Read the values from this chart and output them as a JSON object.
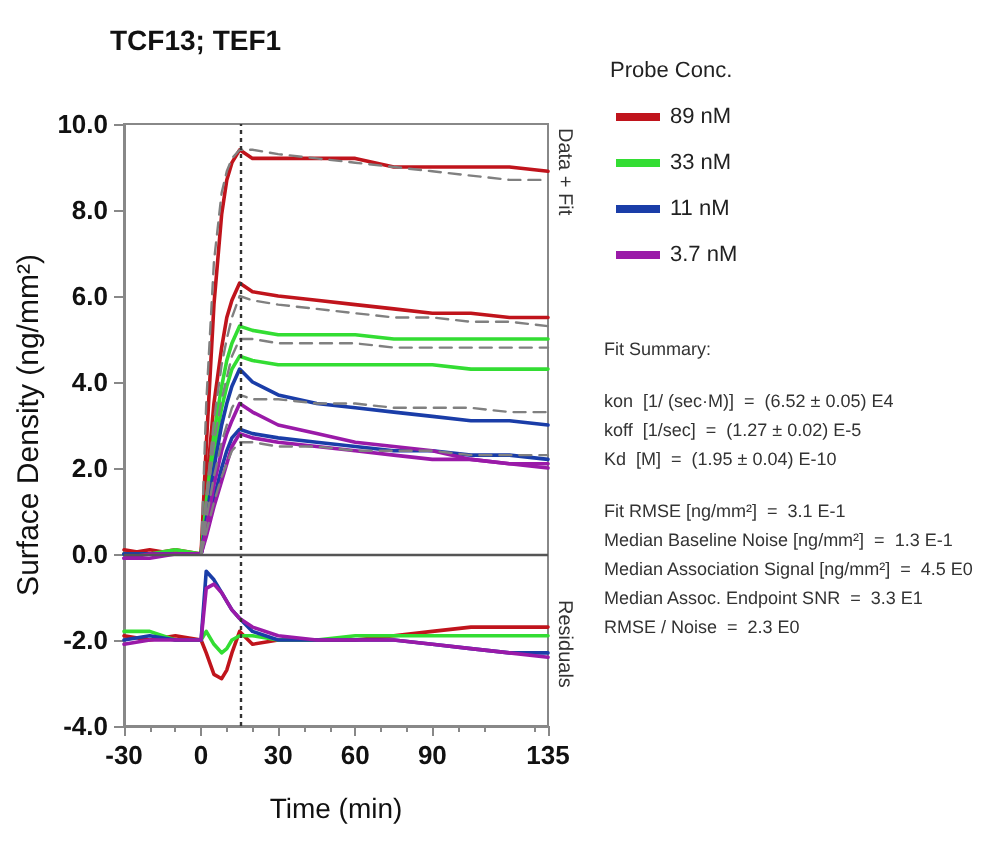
{
  "chart_data": {
    "type": "line",
    "title": "TCF13; TEF1",
    "xlabel": "Time (min)",
    "ylabel": "Surface Density (ng/mm²)",
    "legend_title": "Probe Conc.",
    "legend": "right",
    "grid": false,
    "marker": "none",
    "x": [
      -30,
      -20,
      -10,
      0,
      2,
      5,
      8,
      10,
      12,
      15,
      20,
      30,
      45,
      60,
      75,
      90,
      105,
      120,
      135
    ],
    "xlim": [
      -30,
      135
    ],
    "xticks": [
      -30,
      0,
      30,
      60,
      90,
      135
    ],
    "ylim": [
      -4,
      10
    ],
    "yticks": [
      {
        "value": -4,
        "label": "-4.0"
      },
      {
        "value": -2,
        "label": "-2.0"
      },
      {
        "value": 0,
        "label": "0.0"
      },
      {
        "value": 2,
        "label": "2.0"
      },
      {
        "value": 4,
        "label": "4.0"
      },
      {
        "value": 6,
        "label": "6.0"
      },
      {
        "value": 8,
        "label": "8.0"
      },
      {
        "value": 10,
        "label": "10.0"
      }
    ],
    "series": [
      {
        "name": "89 nM",
        "color": "#c0141c",
        "values": [
          0.1,
          0.0,
          0.1,
          0.0,
          2.5,
          5.8,
          7.9,
          8.7,
          9.1,
          9.4,
          9.2,
          9.2,
          9.2,
          9.2,
          9.0,
          9.0,
          9.0,
          9.0,
          8.9
        ]
      },
      {
        "color": "#c0141c",
        "values": [
          0.0,
          0.1,
          0.0,
          0.0,
          1.5,
          3.5,
          4.8,
          5.5,
          5.9,
          6.3,
          6.1,
          6.0,
          5.9,
          5.8,
          5.7,
          5.6,
          5.6,
          5.5,
          5.5
        ]
      },
      {
        "name": "33 nM",
        "color": "#33dd33",
        "values": [
          0.0,
          0.0,
          0.1,
          0.0,
          1.2,
          2.8,
          3.9,
          4.5,
          4.9,
          5.3,
          5.2,
          5.1,
          5.1,
          5.1,
          5.0,
          5.0,
          5.0,
          5.0,
          5.0
        ]
      },
      {
        "color": "#33dd33",
        "values": [
          0.0,
          0.0,
          0.0,
          0.0,
          1.0,
          2.4,
          3.4,
          3.9,
          4.3,
          4.6,
          4.5,
          4.4,
          4.4,
          4.4,
          4.4,
          4.4,
          4.3,
          4.3,
          4.3
        ]
      },
      {
        "name": "11 nM",
        "color": "#1a3da8",
        "values": [
          0.0,
          0.0,
          0.0,
          0.0,
          0.8,
          2.0,
          3.0,
          3.5,
          3.9,
          4.3,
          4.0,
          3.7,
          3.5,
          3.4,
          3.3,
          3.2,
          3.1,
          3.1,
          3.0
        ]
      },
      {
        "color": "#1a3da8",
        "values": [
          0.0,
          0.0,
          0.0,
          0.0,
          0.5,
          1.3,
          2.0,
          2.4,
          2.7,
          2.9,
          2.8,
          2.7,
          2.6,
          2.5,
          2.4,
          2.4,
          2.3,
          2.3,
          2.2
        ]
      },
      {
        "name": "3.7 nM",
        "color": "#9a1aa8",
        "values": [
          -0.1,
          0.0,
          0.0,
          0.0,
          0.6,
          1.6,
          2.4,
          2.8,
          3.1,
          3.5,
          3.3,
          3.0,
          2.8,
          2.6,
          2.5,
          2.4,
          2.2,
          2.1,
          2.0
        ]
      },
      {
        "color": "#9a1aa8",
        "values": [
          -0.1,
          -0.1,
          0.0,
          0.0,
          0.4,
          1.1,
          1.7,
          2.1,
          2.5,
          2.8,
          2.7,
          2.6,
          2.5,
          2.4,
          2.3,
          2.2,
          2.2,
          2.1,
          2.1
        ]
      },
      {
        "color": "#808080",
        "line_style": "dashed",
        "values": [
          null,
          null,
          null,
          0.0,
          3.5,
          6.8,
          8.4,
          8.9,
          9.2,
          9.4,
          9.4,
          9.3,
          9.2,
          9.1,
          9.0,
          8.9,
          8.8,
          8.7,
          8.7
        ]
      },
      {
        "color": "#808080",
        "line_style": "dashed",
        "values": [
          null,
          null,
          null,
          0.0,
          1.3,
          3.1,
          4.4,
          5.0,
          5.5,
          6.0,
          5.9,
          5.8,
          5.7,
          5.6,
          5.5,
          5.5,
          5.4,
          5.4,
          5.3
        ]
      },
      {
        "color": "#808080",
        "line_style": "dashed",
        "values": [
          null,
          null,
          null,
          0.0,
          1.1,
          2.6,
          3.6,
          4.1,
          4.6,
          5.0,
          5.0,
          4.9,
          4.9,
          4.9,
          4.8,
          4.8,
          4.8,
          4.8,
          4.8
        ]
      },
      {
        "color": "#808080",
        "line_style": "dashed",
        "values": [
          null,
          null,
          null,
          0.0,
          0.8,
          1.8,
          2.6,
          3.0,
          3.4,
          3.7,
          3.6,
          3.6,
          3.5,
          3.5,
          3.4,
          3.4,
          3.4,
          3.3,
          3.3
        ]
      },
      {
        "color": "#808080",
        "line_style": "dashed",
        "values": [
          null,
          null,
          null,
          0.0,
          0.5,
          1.2,
          1.8,
          2.1,
          2.4,
          2.6,
          2.6,
          2.5,
          2.5,
          2.4,
          2.4,
          2.4,
          2.3,
          2.3,
          2.3
        ]
      },
      {
        "color": "#c0141c",
        "values": [
          -1.9,
          -2.0,
          -1.9,
          -2.0,
          -2.3,
          -2.8,
          -2.9,
          -2.7,
          -2.3,
          -1.8,
          -2.1,
          -2.0,
          -2.0,
          -2.0,
          -1.9,
          -1.8,
          -1.7,
          -1.7,
          -1.7
        ]
      },
      {
        "color": "#33dd33",
        "values": [
          -1.8,
          -1.8,
          -2.0,
          -2.0,
          -1.8,
          -2.1,
          -2.3,
          -2.2,
          -2.0,
          -1.9,
          -1.9,
          -2.0,
          -2.0,
          -1.9,
          -1.9,
          -1.9,
          -1.9,
          -1.9,
          -1.9
        ]
      },
      {
        "color": "#1a3da8",
        "values": [
          -2.0,
          -1.9,
          -2.0,
          -2.0,
          -0.4,
          -0.6,
          -0.9,
          -1.1,
          -1.3,
          -1.5,
          -1.8,
          -2.0,
          -2.0,
          -2.0,
          -2.0,
          -2.1,
          -2.2,
          -2.3,
          -2.3
        ]
      },
      {
        "color": "#9a1aa8",
        "values": [
          -2.1,
          -2.0,
          -2.0,
          -2.0,
          -0.8,
          -0.7,
          -0.9,
          -1.1,
          -1.3,
          -1.5,
          -1.7,
          -1.9,
          -2.0,
          -2.0,
          -2.0,
          -2.1,
          -2.2,
          -2.3,
          -2.4
        ]
      }
    ],
    "ref_lines": [
      {
        "axis": "x",
        "value": 15,
        "color": "#333333",
        "line_style": "dotted"
      },
      {
        "axis": "y",
        "value": 0,
        "color": "#555555",
        "line_style": "solid"
      }
    ],
    "annotations": [
      "Data + Fit",
      "Residuals",
      "Fit Summary:",
      "kon  [1/ (sec·M)]  =  (6.52 ± 0.05) E4",
      "koff  [1/sec]  =  (1.27 ± 0.02) E-5",
      "Kd  [M]  =  (1.95 ± 0.04) E-10",
      "Fit RMSE [ng/mm²]  =  3.1 E-1",
      "Median Baseline Noise [ng/mm²]  =  1.3 E-1",
      "Median Association Signal [ng/mm²]  =  4.5 E0",
      "Median Assoc. Endpoint SNR  =  3.3 E1",
      "RMSE / Noise  =  2.3 E0"
    ]
  }
}
